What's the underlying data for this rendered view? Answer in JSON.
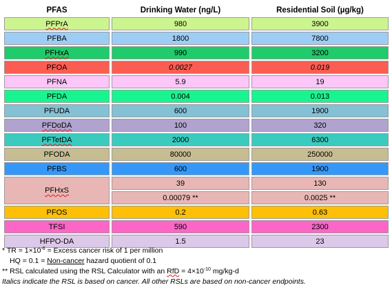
{
  "colors": {
    "grid": "#9a9a9a",
    "pfpra": "#cdf58f",
    "pfba": "#9dcdf5",
    "pfhxa": "#1fcb6a",
    "pfoa": "#fc5d52",
    "pfna": "#fcc6f8",
    "pfda": "#18f590",
    "pfuda": "#84c1d5",
    "pfdoda": "#b1a3cf",
    "pftetda": "#3bcbbe",
    "pfoda": "#c7bd92",
    "pfbs": "#3598f8",
    "pfhxs": "#e8b7b5",
    "pfos": "#fdc007",
    "tfsi": "#fb66c7",
    "hfpoda": "#dcc9ea"
  },
  "table": {
    "headers": [
      "PFAS",
      "Drinking Water (ng/L)",
      "Residential Soil (µg/kg)"
    ],
    "rows": [
      {
        "name": "PFPrA",
        "water": "980",
        "soil": "3900"
      },
      {
        "name": "PFBA",
        "water": "1800",
        "soil": "7800"
      },
      {
        "name": "PFHxA",
        "water": "990",
        "soil": "3200"
      },
      {
        "name": "PFOA",
        "water": "0.0027",
        "soil": "0.019"
      },
      {
        "name": "PFNA",
        "water": "5.9",
        "soil": "19"
      },
      {
        "name": "PFDA",
        "water": "0.004",
        "soil": "0.013"
      },
      {
        "name": "PFUDA",
        "water": "600",
        "soil": "1900"
      },
      {
        "name": "PFDoDA",
        "water": "100",
        "soil": "320"
      },
      {
        "name": "PFTetDA",
        "water": "2000",
        "soil": "6300"
      },
      {
        "name": "PFODA",
        "water": "80000",
        "soil": "250000"
      },
      {
        "name": "PFBS",
        "water": "600",
        "soil": "1900"
      },
      {
        "name": "PFHxS",
        "water": "39",
        "soil": "130",
        "water2": "0.00079 **",
        "soil2": "0.0025 **"
      },
      {
        "name": "PFOS",
        "water": "0.2",
        "soil": "0.63"
      },
      {
        "name": "TFSI",
        "water": "590",
        "soil": "2300"
      },
      {
        "name": "HFPO-DA",
        "water": "1.5",
        "soil": "23"
      }
    ]
  },
  "notes": {
    "tr_prefix": "* TR = 1×10",
    "tr_exp": "-6",
    "tr_suffix": " = Excess cancer risk of 1 per million",
    "hq_prefix": "HQ = 0.1 = ",
    "hq_link": "Non-cancer",
    "hq_suffix": " hazard quotient of 0.1",
    "rsl_prefix": "** RSL calculated using the RSL Calculator with an ",
    "rsl_rfd": "RfD",
    "rsl_mid": " = 4×10",
    "rsl_exp": "-10",
    "rsl_suffix": " mg/kg-d",
    "italics_note": "Italics indicate the RSL is based on cancer. All other RSLs are based on non-cancer endpoints."
  }
}
